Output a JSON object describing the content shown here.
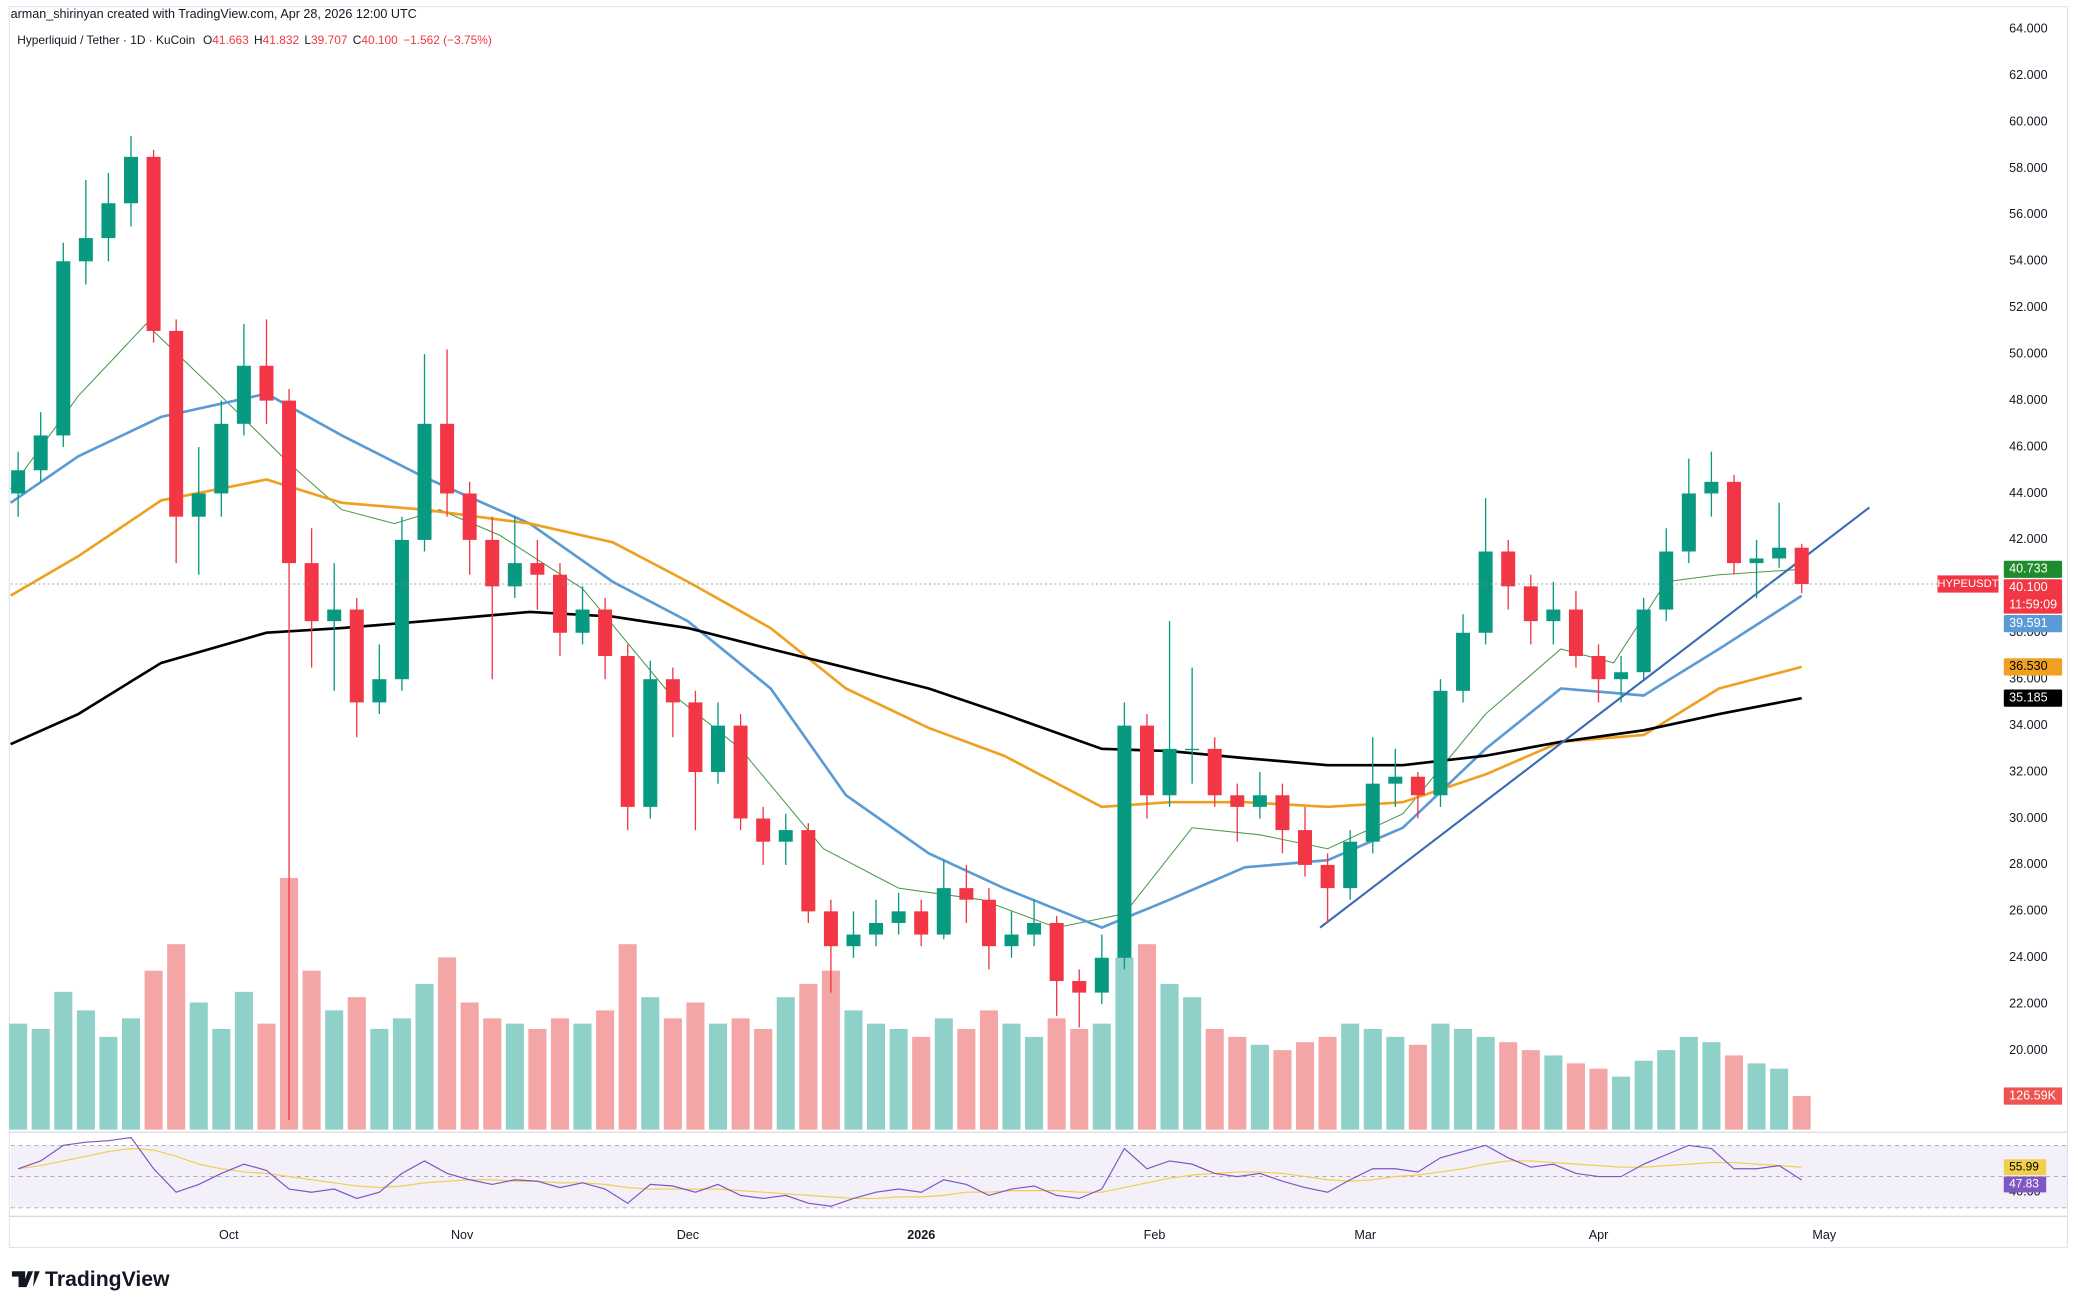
{
  "header": {
    "credit": "arman_shirinyan created with TradingView.com, Apr 28, 2026 12:00 UTC",
    "symbol": "Hyperliquid / Tether · 1D · KuCoin",
    "ohlc": [
      {
        "key": "O",
        "value": "41.663"
      },
      {
        "key": "H",
        "value": "41.832"
      },
      {
        "key": "L",
        "value": "39.707"
      },
      {
        "key": "C",
        "value": "40.100"
      }
    ],
    "change": "−1.562 (−3.75%)"
  },
  "footer": {
    "logo": "TradingView"
  },
  "chart_data": {
    "type": "candlestick",
    "up_color": "#089981",
    "down_color": "#f23645",
    "xlim": [
      0,
      264.5
    ],
    "xticks": [
      {
        "value": 29,
        "label": "Oct"
      },
      {
        "value": 60,
        "label": "Nov"
      },
      {
        "value": 90,
        "label": "Dec"
      },
      {
        "value": 121,
        "label": "2026"
      },
      {
        "value": 152,
        "label": "Feb"
      },
      {
        "value": 180,
        "label": "Mar"
      },
      {
        "value": 211,
        "label": "Apr"
      },
      {
        "value": 241,
        "label": "May"
      }
    ],
    "ylim": [
      16.6,
      64.4
    ],
    "yticks": [
      {
        "value": 20,
        "label": "20.000"
      },
      {
        "value": 22,
        "label": "22.000"
      },
      {
        "value": 24,
        "label": "24.000"
      },
      {
        "value": 26,
        "label": "26.000"
      },
      {
        "value": 28,
        "label": "28.000"
      },
      {
        "value": 30,
        "label": "30.000"
      },
      {
        "value": 32,
        "label": "32.000"
      },
      {
        "value": 34,
        "label": "34.000"
      },
      {
        "value": 36,
        "label": "36.000"
      },
      {
        "value": 38,
        "label": "38.000"
      },
      {
        "value": 42,
        "label": "42.000"
      },
      {
        "value": 44,
        "label": "44.000"
      },
      {
        "value": 46,
        "label": "46.000"
      },
      {
        "value": 48,
        "label": "48.000"
      },
      {
        "value": 50,
        "label": "50.000"
      },
      {
        "value": 52,
        "label": "52.000"
      },
      {
        "value": 54,
        "label": "54.000"
      },
      {
        "value": 56,
        "label": "56.000"
      },
      {
        "value": 58,
        "label": "58.000"
      },
      {
        "value": 60,
        "label": "60.000"
      },
      {
        "value": 62,
        "label": "62.000"
      },
      {
        "value": 64,
        "label": "64.000"
      }
    ],
    "grid": false,
    "x": [
      1,
      4,
      7,
      10,
      13,
      16,
      19,
      22,
      25,
      28,
      31,
      34,
      37,
      40,
      43,
      46,
      49,
      52,
      55,
      58,
      61,
      64,
      67,
      70,
      73,
      76,
      79,
      82,
      85,
      88,
      91,
      94,
      97,
      100,
      103,
      106,
      109,
      112,
      115,
      118,
      121,
      124,
      127,
      130,
      133,
      136,
      139,
      142,
      145,
      148,
      151,
      154,
      157,
      160,
      163,
      166,
      169,
      172,
      175,
      178,
      181,
      184,
      187,
      190,
      193,
      196,
      199,
      202,
      205,
      208,
      211,
      214,
      217,
      220,
      223,
      226,
      229,
      232,
      235,
      238
    ],
    "open": [
      44,
      45,
      46.5,
      54,
      55,
      56.5,
      58.5,
      51,
      43,
      44,
      47,
      49.5,
      48,
      41,
      38.5,
      39,
      35,
      36,
      42,
      47,
      44,
      42,
      40,
      41,
      40.5,
      38,
      39,
      37,
      30.5,
      36,
      35,
      32,
      34,
      30,
      29,
      29.5,
      26,
      24.5,
      25,
      25.5,
      26,
      25,
      27,
      26.5,
      24.5,
      25,
      25.5,
      23,
      22.5,
      24,
      34,
      31,
      33,
      33,
      31,
      30.5,
      31,
      29.5,
      28,
      27,
      29,
      31.5,
      31.8,
      31,
      35.5,
      38,
      41.5,
      40,
      38.5,
      39,
      37,
      36,
      36.3,
      39,
      41.5,
      44,
      44.5,
      41,
      41.2,
      41.663
    ],
    "high": [
      45.8,
      47.5,
      54.8,
      57.5,
      57.8,
      59.4,
      58.8,
      51.5,
      46,
      48,
      51.3,
      51.5,
      48.5,
      42.5,
      41,
      39.5,
      37.5,
      43,
      50,
      50.2,
      44.5,
      43,
      43,
      42,
      41,
      40,
      39.5,
      37.5,
      36.8,
      36.5,
      35.5,
      35,
      34.5,
      30.5,
      30.2,
      29.8,
      26.5,
      26,
      26.5,
      26.8,
      26.5,
      28.2,
      28,
      27,
      26,
      26.5,
      25.8,
      23.5,
      25,
      35,
      34.5,
      38.5,
      36.5,
      33.5,
      31.5,
      32,
      31.5,
      30.5,
      28.5,
      29.5,
      33.5,
      33,
      32,
      36,
      38.8,
      43.8,
      42,
      40.5,
      40.2,
      39.8,
      37.5,
      37,
      39.5,
      42.5,
      45.5,
      45.8,
      44.8,
      42,
      43.6,
      41.832
    ],
    "low": [
      43,
      44.5,
      46,
      53,
      54,
      55.5,
      50.5,
      41,
      40.5,
      43,
      46.5,
      47,
      17,
      36.5,
      35.5,
      33.5,
      34.5,
      35.5,
      41.5,
      43,
      40.5,
      36,
      39.5,
      39,
      37,
      37.5,
      36,
      29.5,
      30,
      33.5,
      29.5,
      31.5,
      29.5,
      28,
      28,
      25.5,
      22.5,
      24,
      24.5,
      25,
      24.5,
      24.8,
      25.5,
      23.5,
      24,
      24.5,
      21.5,
      21,
      22,
      23.5,
      30,
      30.5,
      31.5,
      30.5,
      29,
      30,
      28.5,
      27.5,
      25.5,
      26.5,
      28.5,
      30.5,
      30,
      30.5,
      35,
      37.5,
      39,
      37.5,
      37.5,
      36.5,
      35,
      35,
      36,
      38.5,
      41,
      43,
      40.5,
      39.5,
      40.8,
      39.707
    ],
    "close": [
      45,
      46.5,
      54,
      55,
      56.5,
      58.5,
      51,
      43,
      44,
      47,
      49.5,
      48,
      41,
      38.5,
      39,
      35,
      36,
      42,
      47,
      44,
      42,
      40,
      41,
      40.5,
      38,
      39,
      37,
      30.5,
      36,
      35,
      32,
      34,
      30,
      29,
      29.5,
      26,
      24.5,
      25,
      25.5,
      26,
      25,
      27,
      26.5,
      24.5,
      25,
      25.5,
      23,
      22.5,
      24,
      34,
      31,
      33,
      33,
      31,
      30.5,
      31,
      29.5,
      28,
      27,
      29,
      31.5,
      31.8,
      31,
      35.5,
      38,
      41.5,
      40,
      38.5,
      39,
      37,
      36,
      36.3,
      39,
      41.5,
      44,
      44.5,
      41,
      41.2,
      41.663,
      40.1
    ],
    "last_label": "40.100",
    "symbol_tag": "HYPEUSDT",
    "countdown": "11:59:09",
    "moving_averages": [
      {
        "color": "#4c9a4c",
        "width": 0.8,
        "x": [
          0,
          9,
          18,
          27,
          37,
          44,
          51,
          57,
          65,
          76,
          87,
          97,
          108,
          118,
          129,
          139,
          148,
          157,
          166,
          175,
          185,
          196,
          206,
          213,
          220,
          227,
          238
        ],
        "values": [
          44.2,
          48.2,
          51.3,
          48.5,
          45.3,
          43.3,
          42.7,
          43.3,
          42.2,
          39.9,
          35.6,
          33,
          28.7,
          27,
          26.5,
          25.3,
          25.9,
          29.6,
          29.3,
          28.7,
          30.2,
          34.5,
          37.3,
          36.7,
          40.2,
          40.5,
          40.733
        ],
        "last_label": "40.733",
        "tag_color": "#1e8b2c"
      },
      {
        "color": "#5b9bd5",
        "width": 2,
        "x": [
          0,
          9,
          20,
          34,
          44,
          55,
          69,
          80,
          90,
          101,
          111,
          122,
          132,
          145,
          154,
          164,
          175,
          185,
          196,
          206,
          217,
          227,
          238
        ],
        "values": [
          43.6,
          45.6,
          47.3,
          48.3,
          46.5,
          44.7,
          42.7,
          40.2,
          38.5,
          35.6,
          31,
          28.5,
          27,
          25.3,
          26.5,
          27.9,
          28.2,
          29.6,
          33,
          35.6,
          35.3,
          37.3,
          39.591
        ],
        "last_label": "39.591",
        "tag_color": "#5b9bd5"
      },
      {
        "color": "#f0a020",
        "width": 2,
        "x": [
          0,
          9,
          20,
          34,
          44,
          55,
          69,
          80,
          90,
          101,
          111,
          122,
          132,
          145,
          154,
          164,
          175,
          185,
          196,
          206,
          217,
          227,
          238
        ],
        "values": [
          39.6,
          41.3,
          43.7,
          44.6,
          43.6,
          43.3,
          42.7,
          41.9,
          40.2,
          38.2,
          35.6,
          33.9,
          32.7,
          30.5,
          30.7,
          30.7,
          30.5,
          30.7,
          31.9,
          33.3,
          33.6,
          35.6,
          36.53
        ],
        "last_label": "36.530",
        "tag_color": "#f0a020"
      },
      {
        "color": "#000000",
        "width": 2,
        "x": [
          0,
          9,
          20,
          34,
          44,
          55,
          69,
          80,
          90,
          101,
          111,
          122,
          132,
          145,
          154,
          164,
          175,
          185,
          196,
          206,
          217,
          227,
          238
        ],
        "values": [
          33.2,
          34.5,
          36.7,
          38,
          38.2,
          38.5,
          38.9,
          38.7,
          38.2,
          37.3,
          36.5,
          35.6,
          34.5,
          33,
          32.9,
          32.6,
          32.3,
          32.3,
          32.7,
          33.3,
          33.8,
          34.5,
          35.185
        ],
        "last_label": "35.185",
        "tag_color": "#000000"
      }
    ],
    "trendline": {
      "color": "#3a6db5",
      "x": [
        174,
        247
      ],
      "values": [
        25.3,
        43.4
      ]
    },
    "volume": {
      "ylim": [
        0,
        1000
      ],
      "up_color": "#8fd0c8",
      "down_color": "#f4a6a6",
      "tag_color": "#ef5350",
      "values": [
        400,
        380,
        520,
        450,
        350,
        420,
        600,
        700,
        480,
        380,
        520,
        400,
        950,
        600,
        450,
        500,
        380,
        420,
        550,
        650,
        480,
        420,
        400,
        380,
        420,
        400,
        450,
        700,
        500,
        420,
        480,
        400,
        420,
        380,
        500,
        550,
        600,
        450,
        400,
        380,
        350,
        420,
        380,
        450,
        400,
        350,
        420,
        380,
        400,
        650,
        700,
        550,
        500,
        380,
        350,
        320,
        300,
        330,
        350,
        400,
        380,
        350,
        320,
        400,
        380,
        350,
        330,
        300,
        280,
        250,
        230,
        200,
        260,
        300,
        350,
        330,
        280,
        250,
        230,
        126.59
      ],
      "last_label": "126.59K"
    },
    "rsi": {
      "ylim": [
        25,
        75
      ],
      "bands": [
        30,
        50,
        70
      ],
      "yticks": [
        {
          "value": 40,
          "label": "40.00"
        }
      ],
      "color": "#7e57c2",
      "band_fill": "rgba(126,87,194,0.09)",
      "values": [
        55,
        60,
        70,
        72,
        73,
        75,
        55,
        40,
        45,
        52,
        58,
        54,
        42,
        40,
        42,
        36,
        40,
        52,
        60,
        52,
        48,
        45,
        48,
        47,
        43,
        46,
        42,
        33,
        45,
        44,
        40,
        45,
        38,
        36,
        38,
        33,
        31,
        36,
        40,
        42,
        40,
        48,
        45,
        38,
        42,
        44,
        38,
        36,
        42,
        68,
        55,
        60,
        58,
        52,
        50,
        52,
        47,
        43,
        40,
        48,
        55,
        55,
        53,
        62,
        66,
        70,
        62,
        56,
        58,
        52,
        50,
        50,
        58,
        64,
        70,
        68,
        55,
        55,
        57,
        47.83
      ],
      "last_label": "47.83",
      "signal": {
        "color": "#f2cf4a",
        "last_label": "55.99",
        "values": [
          55,
          57,
          60,
          63,
          66,
          68,
          67,
          63,
          58,
          55,
          53,
          52,
          50,
          48,
          46,
          44,
          43,
          44,
          46,
          47,
          48,
          48,
          47,
          47,
          46,
          46,
          45,
          43,
          42,
          42,
          42,
          42,
          41,
          40,
          39,
          38,
          37,
          36,
          36,
          37,
          37,
          38,
          40,
          40,
          41,
          41,
          41,
          40,
          40,
          43,
          46,
          49,
          51,
          52,
          53,
          53,
          52,
          50,
          48,
          47,
          48,
          50,
          51,
          53,
          55,
          58,
          60,
          60,
          59,
          58,
          57,
          56,
          56,
          57,
          58,
          59,
          59,
          58,
          57,
          55.99
        ]
      }
    }
  }
}
